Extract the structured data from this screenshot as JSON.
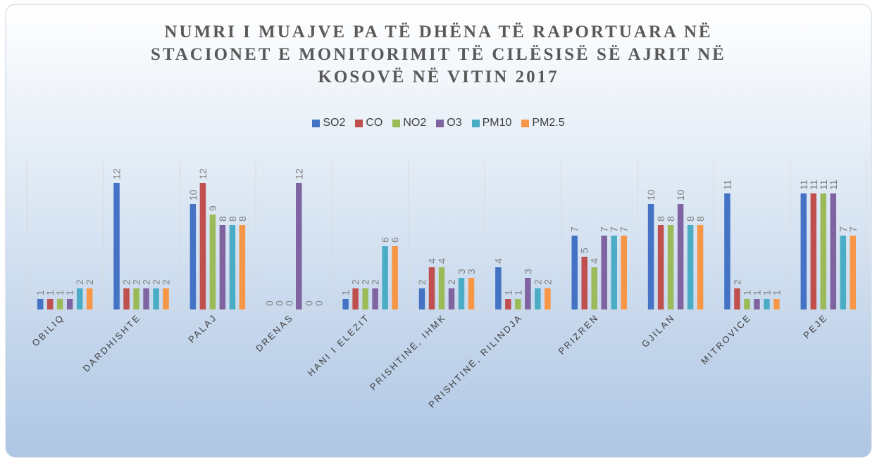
{
  "chart_data": {
    "type": "bar",
    "title": [
      "NUMRI I MUAJVE PA TË DHËNA TË RAPORTUARA NË",
      "STACIONET E MONITORIMIT TË CILËSISË SË AJRIT NË",
      "KOSOVË NË VITIN 2017"
    ],
    "categories": [
      "OBILIQ",
      "DARDHISHTE",
      "PALAJ",
      "DRENAS",
      "HANI I ELEZIT",
      "PRISHTINË, IHMK",
      "PRISHTINË, RILINDJA",
      "PRIZREN",
      "GJILAN",
      "MITROVICE",
      "PEJE"
    ],
    "series": [
      {
        "name": "SO2",
        "color": "#4472c4",
        "values": [
          1,
          12,
          10,
          0,
          1,
          2,
          4,
          7,
          10,
          11,
          11
        ]
      },
      {
        "name": "CO",
        "color": "#c0504d",
        "values": [
          1,
          2,
          12,
          0,
          2,
          4,
          1,
          5,
          8,
          2,
          11
        ]
      },
      {
        "name": "NO2",
        "color": "#9bbb59",
        "values": [
          1,
          2,
          9,
          0,
          2,
          4,
          1,
          4,
          8,
          1,
          11
        ]
      },
      {
        "name": "O3",
        "color": "#8064a2",
        "values": [
          1,
          2,
          8,
          12,
          2,
          2,
          3,
          7,
          10,
          1,
          11
        ]
      },
      {
        "name": "PM10",
        "color": "#4bacc6",
        "values": [
          2,
          2,
          8,
          0,
          6,
          3,
          2,
          7,
          8,
          1,
          7
        ]
      },
      {
        "name": "PM2.5",
        "color": "#f79646",
        "values": [
          2,
          2,
          8,
          0,
          6,
          3,
          2,
          7,
          8,
          1,
          7
        ]
      }
    ],
    "ylim": [
      0,
      14
    ],
    "legend": "top"
  }
}
